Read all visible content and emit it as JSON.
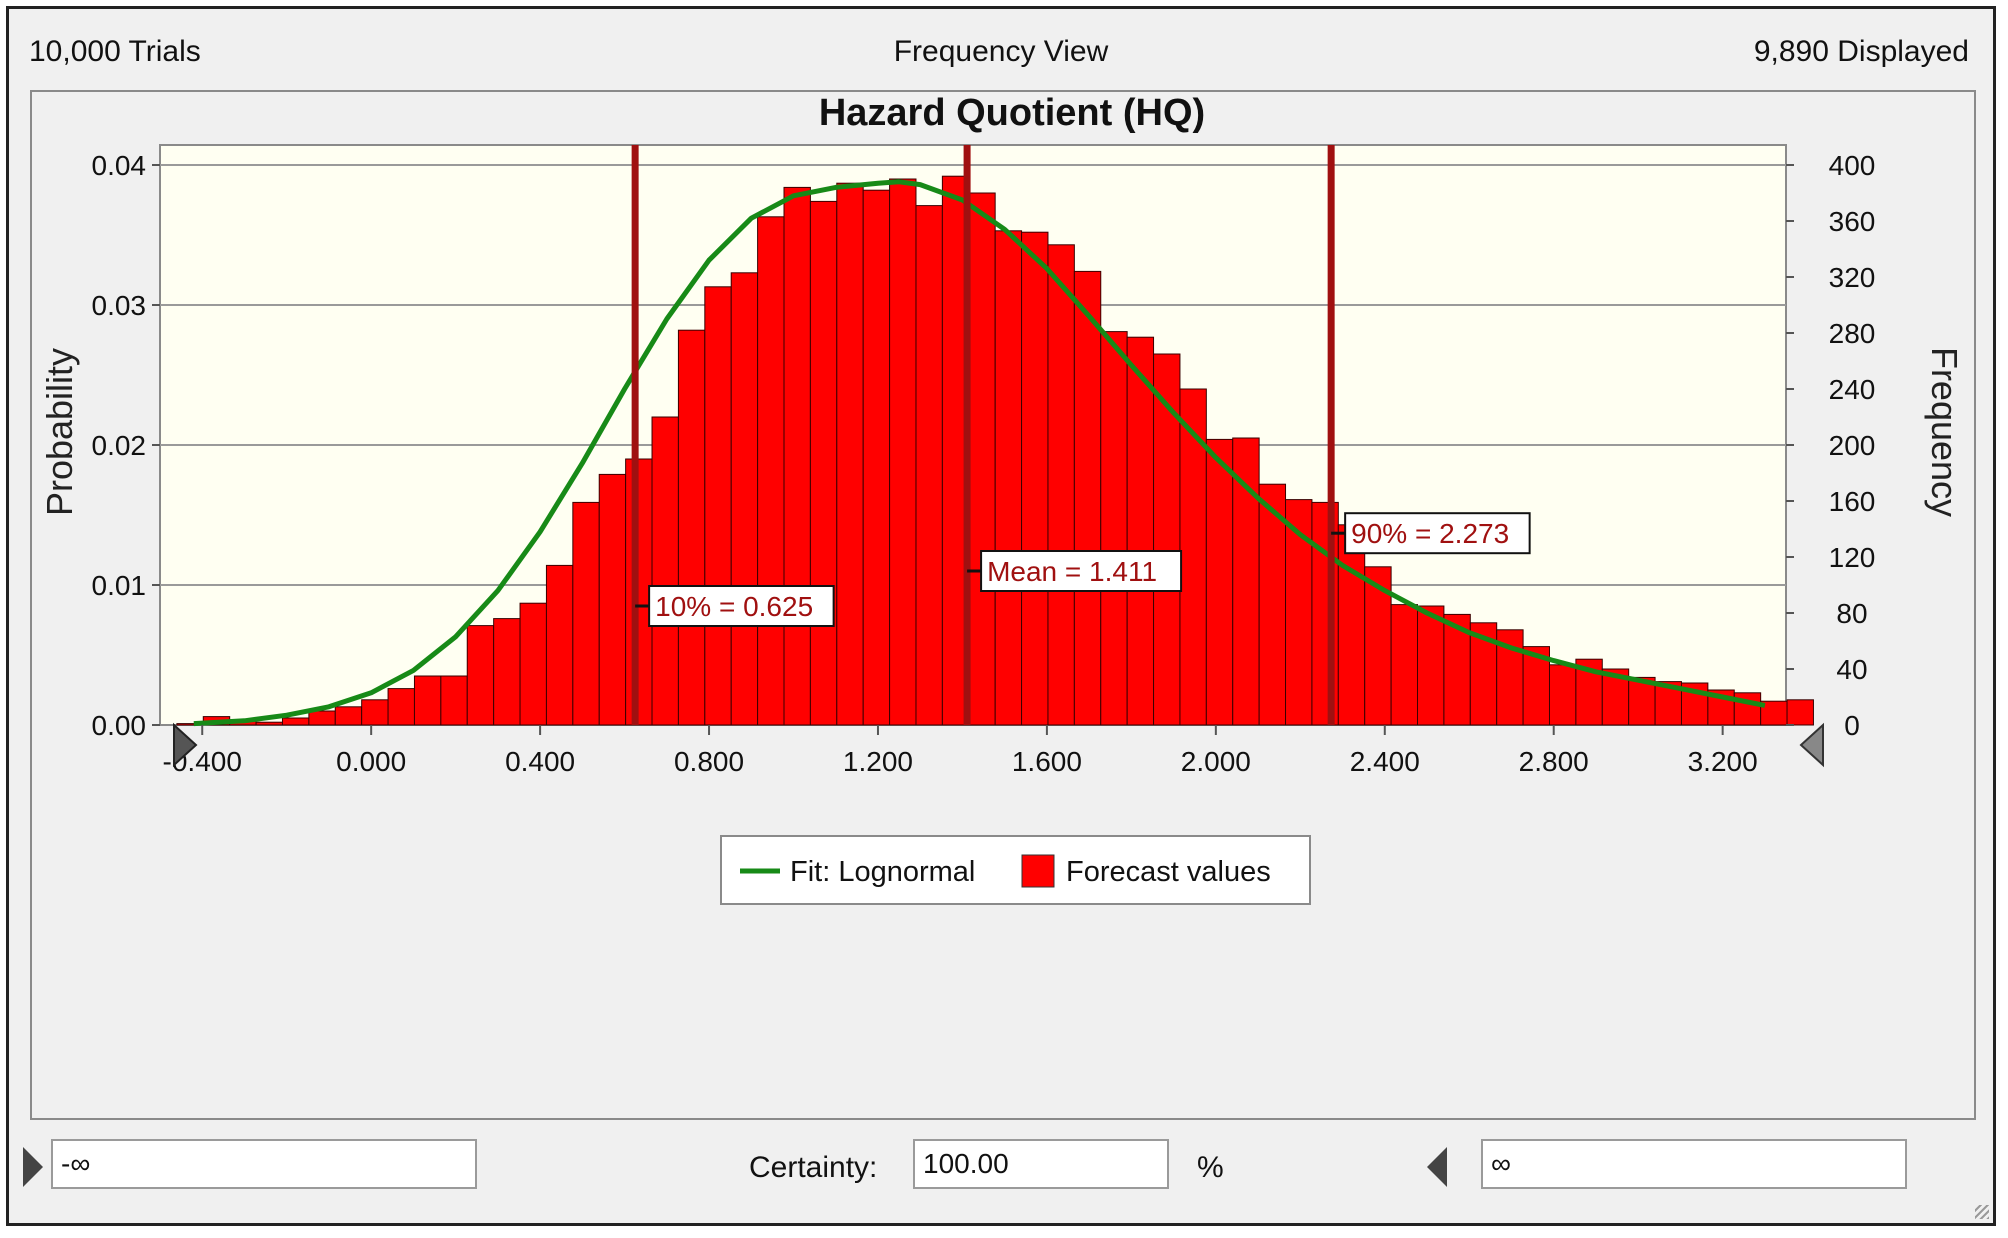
{
  "header": {
    "trials": "10,000 Trials",
    "view": "Frequency View",
    "displayed": "9,890 Displayed"
  },
  "chart_data": {
    "type": "bar",
    "title": "Hazard Quotient (HQ)",
    "ylabel": "Probability",
    "y2label": "Frequency",
    "ylim": [
      0,
      0.04
    ],
    "y2lim": [
      0,
      400
    ],
    "xlim": [
      -0.5,
      3.35
    ],
    "yticks": [
      "0.00",
      "0.01",
      "0.02",
      "0.03",
      "0.04"
    ],
    "y2ticks": [
      "0",
      "40",
      "80",
      "120",
      "160",
      "200",
      "240",
      "280",
      "320",
      "360",
      "400"
    ],
    "xticks": [
      "-0.400",
      "0.000",
      "0.400",
      "0.800",
      "1.200",
      "1.600",
      "2.000",
      "2.400",
      "2.800",
      "3.200"
    ],
    "bin_start": -0.46,
    "bin_width": 0.0625,
    "bar_color": "#ff0000",
    "series": [
      {
        "name": "Forecast values",
        "values": [
          1,
          6,
          3,
          2,
          5,
          10,
          13,
          18,
          26,
          35,
          35,
          71,
          76,
          87,
          114,
          159,
          179,
          190,
          220,
          282,
          313,
          323,
          363,
          384,
          374,
          387,
          382,
          390,
          371,
          392,
          380,
          353,
          352,
          343,
          324,
          281,
          277,
          265,
          240,
          204,
          205,
          172,
          161,
          159,
          143,
          113,
          86,
          85,
          79,
          73,
          68,
          56,
          43,
          47,
          40,
          34,
          31,
          30,
          25,
          23,
          17,
          18
        ]
      },
      {
        "name": "Fit: Lognormal",
        "type": "line",
        "color": "#178a17",
        "x": [
          -0.42,
          -0.3,
          -0.2,
          -0.1,
          0.0,
          0.1,
          0.2,
          0.3,
          0.4,
          0.5,
          0.6,
          0.7,
          0.8,
          0.9,
          1.0,
          1.1,
          1.2,
          1.25,
          1.3,
          1.4,
          1.5,
          1.6,
          1.7,
          1.8,
          1.9,
          2.0,
          2.1,
          2.2,
          2.3,
          2.4,
          2.5,
          2.6,
          2.7,
          2.8,
          2.9,
          3.0,
          3.1,
          3.2,
          3.3
        ],
        "y": [
          0.0001,
          0.0003,
          0.0007,
          0.0013,
          0.0023,
          0.0039,
          0.0063,
          0.0096,
          0.0138,
          0.0187,
          0.024,
          0.029,
          0.0332,
          0.0362,
          0.0378,
          0.0384,
          0.0387,
          0.0388,
          0.0386,
          0.0375,
          0.0354,
          0.0326,
          0.0292,
          0.0257,
          0.0223,
          0.0191,
          0.0162,
          0.0136,
          0.0114,
          0.0096,
          0.008,
          0.0066,
          0.0055,
          0.0046,
          0.0038,
          0.0032,
          0.0026,
          0.002,
          0.0014
        ]
      }
    ],
    "markers": [
      {
        "x": 0.625,
        "label": "10% = 0.625",
        "label_y": 0.0085
      },
      {
        "x": 1.411,
        "label": "Mean = 1.411",
        "label_y": 0.011
      },
      {
        "x": 2.273,
        "label": "90% = 2.273",
        "label_y": 0.0137
      }
    ],
    "marker_color": "#a01010",
    "legend": [
      "Fit: Lognormal",
      "Forecast values"
    ],
    "legend_placement": "bottom-center",
    "grid": true
  },
  "certainty": {
    "left_value": "-∞",
    "label": "Certainty:",
    "value": "100.00",
    "unit": "%",
    "right_value": "∞"
  }
}
